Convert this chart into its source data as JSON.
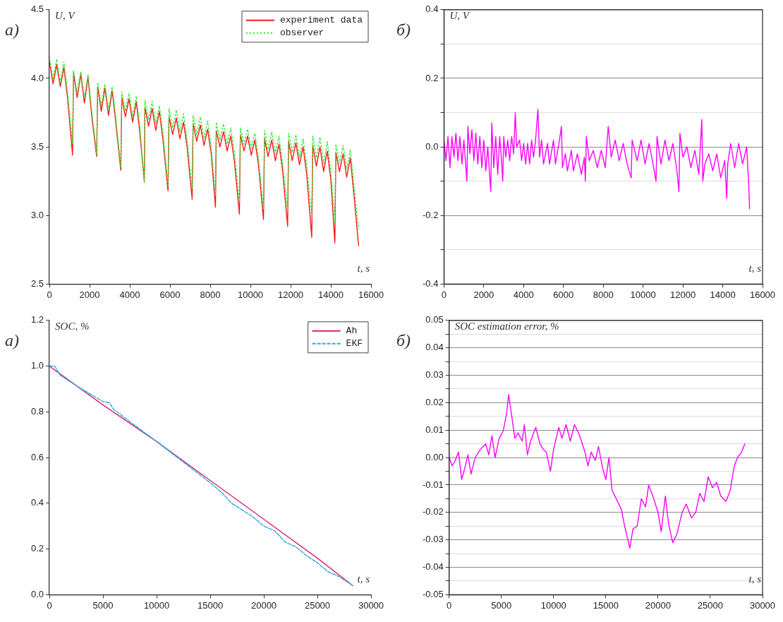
{
  "chart_data": [
    {
      "type": "line",
      "xlabel": "t, s",
      "ylabel": "U, V",
      "annotations": [
        "а)"
      ],
      "legend": "top right",
      "marker": "none",
      "xlim": [
        0,
        16000
      ],
      "xticks": [
        0,
        2000,
        4000,
        6000,
        8000,
        10000,
        12000,
        14000,
        16000
      ],
      "ylim": [
        2.5,
        4.5
      ],
      "yticks": [
        2.5,
        {
          "value": 3,
          "label": "3.0"
        },
        3.5,
        {
          "value": 4,
          "label": "4.0"
        },
        4.5
      ],
      "x": [
        0,
        180,
        360,
        540,
        720,
        900,
        1150,
        1200,
        1380,
        1560,
        1740,
        1920,
        2100,
        2350,
        2400,
        2580,
        2760,
        2940,
        3120,
        3300,
        3550,
        3600,
        3780,
        3960,
        4140,
        4320,
        4500,
        4720,
        4750,
        4930,
        5110,
        5290,
        5470,
        5650,
        5900,
        5950,
        6130,
        6310,
        6490,
        6670,
        6850,
        7100,
        7150,
        7330,
        7510,
        7690,
        7870,
        8050,
        8260,
        8300,
        8480,
        8660,
        8840,
        9020,
        9200,
        9450,
        9500,
        9680,
        9860,
        10040,
        10220,
        10400,
        10650,
        10700,
        10880,
        11060,
        11240,
        11420,
        11600,
        11850,
        11900,
        12080,
        12260,
        12440,
        12620,
        12800,
        13050,
        13100,
        13280,
        13460,
        13640,
        13820,
        14000,
        14200,
        14250,
        14430,
        14610,
        14790,
        14970,
        15150,
        15380
      ],
      "series": [
        {
          "name": "experiment data",
          "color": "#ff1a1a",
          "line_style": "solid",
          "values": [
            4.12,
            3.96,
            4.1,
            3.94,
            4.08,
            3.86,
            3.44,
            4.04,
            3.86,
            4.03,
            3.82,
            4.01,
            3.73,
            3.43,
            3.94,
            3.76,
            3.93,
            3.73,
            3.91,
            3.68,
            3.33,
            3.86,
            3.72,
            3.85,
            3.68,
            3.83,
            3.6,
            3.25,
            3.79,
            3.65,
            3.78,
            3.62,
            3.76,
            3.55,
            3.18,
            3.72,
            3.59,
            3.71,
            3.56,
            3.68,
            3.5,
            3.12,
            3.67,
            3.54,
            3.66,
            3.51,
            3.63,
            3.45,
            3.06,
            3.62,
            3.5,
            3.61,
            3.47,
            3.58,
            3.4,
            3.01,
            3.59,
            3.47,
            3.58,
            3.44,
            3.55,
            3.37,
            2.97,
            3.56,
            3.43,
            3.55,
            3.4,
            3.52,
            3.33,
            2.92,
            3.54,
            3.4,
            3.53,
            3.37,
            3.5,
            3.3,
            2.84,
            3.51,
            3.36,
            3.5,
            3.32,
            3.47,
            3.26,
            2.8,
            3.46,
            3.32,
            3.45,
            3.28,
            3.42,
            3.15,
            2.78
          ]
        },
        {
          "name": "observer",
          "color": "#33ee33",
          "line_style": "dotted",
          "values": [
            4.16,
            3.99,
            4.14,
            3.97,
            4.12,
            3.9,
            3.52,
            4.06,
            3.89,
            4.05,
            3.86,
            4.03,
            3.77,
            3.45,
            3.97,
            3.8,
            3.96,
            3.77,
            3.94,
            3.72,
            3.35,
            3.9,
            3.76,
            3.89,
            3.72,
            3.87,
            3.65,
            3.24,
            3.84,
            3.7,
            3.83,
            3.67,
            3.8,
            3.6,
            3.22,
            3.78,
            3.64,
            3.77,
            3.61,
            3.74,
            3.55,
            3.2,
            3.73,
            3.59,
            3.72,
            3.56,
            3.69,
            3.5,
            3.15,
            3.68,
            3.55,
            3.67,
            3.52,
            3.64,
            3.46,
            3.1,
            3.64,
            3.52,
            3.63,
            3.49,
            3.6,
            3.42,
            3.05,
            3.62,
            3.48,
            3.61,
            3.45,
            3.58,
            3.38,
            3.03,
            3.6,
            3.46,
            3.59,
            3.42,
            3.56,
            3.36,
            3.0,
            3.58,
            3.42,
            3.57,
            3.38,
            3.54,
            3.32,
            2.95,
            3.52,
            3.38,
            3.51,
            3.34,
            3.48,
            3.22,
            2.9
          ]
        }
      ]
    },
    {
      "type": "line",
      "xlabel": "t, s",
      "ylabel": "U, V",
      "annotations": [
        "б)"
      ],
      "marker": "none",
      "grid": "y",
      "xlim": [
        0,
        16000
      ],
      "xticks": [
        0,
        2000,
        4000,
        6000,
        8000,
        10000,
        12000,
        14000,
        16000
      ],
      "ylim": [
        -0.4,
        0.4
      ],
      "yticks": [
        -0.4,
        {
          "value": -0.3,
          "label": null
        },
        -0.2,
        {
          "value": -0.1,
          "label": null
        },
        {
          "value": 0,
          "label": "0.0"
        },
        {
          "value": 0.1,
          "label": null
        },
        0.2,
        {
          "value": 0.3,
          "label": null
        },
        0.4
      ],
      "x": [
        0,
        100,
        200,
        300,
        400,
        500,
        600,
        700,
        800,
        900,
        1000,
        1100,
        1150,
        1200,
        1300,
        1400,
        1500,
        1600,
        1700,
        1800,
        1900,
        2000,
        2100,
        2200,
        2300,
        2350,
        2400,
        2500,
        2600,
        2700,
        2800,
        2900,
        2950,
        3000,
        3100,
        3200,
        3300,
        3400,
        3500,
        3580,
        3650,
        3800,
        3900,
        4000,
        4100,
        4200,
        4300,
        4400,
        4500,
        4600,
        4720,
        4800,
        4900,
        5000,
        5200,
        5300,
        5500,
        5600,
        5800,
        5900,
        5950,
        6100,
        6200,
        6400,
        6500,
        6700,
        6900,
        7050,
        7100,
        7150,
        7300,
        7500,
        7700,
        7900,
        8100,
        8250,
        8400,
        8600,
        8800,
        9000,
        9200,
        9400,
        9450,
        9700,
        9900,
        10100,
        10300,
        10500,
        10650,
        10700,
        10900,
        11100,
        11300,
        11500,
        11700,
        11800,
        11850,
        12000,
        12200,
        12400,
        12600,
        12800,
        12950,
        13000,
        13100,
        13300,
        13500,
        13700,
        13900,
        14100,
        14200,
        14250,
        14400,
        14600,
        14800,
        15000,
        15200,
        15300,
        15350
      ],
      "series": [
        {
          "color": "#ff00ff",
          "values": [
            0.02,
            -0.04,
            0.03,
            -0.06,
            0.03,
            -0.03,
            0.04,
            -0.04,
            0.03,
            -0.05,
            0.02,
            -0.06,
            -0.1,
            0.06,
            -0.02,
            0.05,
            -0.04,
            0.04,
            -0.05,
            0.03,
            -0.06,
            0.02,
            -0.07,
            0.0,
            -0.09,
            -0.13,
            0.07,
            -0.06,
            0.03,
            -0.08,
            0.03,
            -0.05,
            -0.1,
            0.03,
            -0.03,
            0.02,
            -0.04,
            0.03,
            -0.02,
            0.1,
            0.0,
            0.02,
            -0.04,
            0.01,
            -0.05,
            0.01,
            -0.05,
            0.02,
            -0.03,
            0.02,
            0.11,
            -0.03,
            0.02,
            -0.05,
            0.01,
            -0.05,
            0.02,
            -0.05,
            0.02,
            0.06,
            -0.06,
            -0.02,
            -0.07,
            -0.01,
            -0.07,
            -0.02,
            -0.08,
            -0.03,
            -0.1,
            0.03,
            -0.04,
            -0.01,
            -0.06,
            -0.01,
            -0.06,
            0.06,
            -0.03,
            0.02,
            -0.04,
            0.01,
            -0.05,
            -0.09,
            0.02,
            -0.04,
            0.02,
            -0.05,
            0.01,
            -0.05,
            -0.1,
            0.03,
            -0.05,
            0.02,
            -0.04,
            0.01,
            -0.07,
            -0.13,
            0.04,
            -0.03,
            0.0,
            -0.06,
            -0.01,
            -0.08,
            0.08,
            -0.1,
            -0.05,
            -0.02,
            -0.07,
            -0.02,
            -0.09,
            -0.04,
            -0.15,
            -0.05,
            0.01,
            -0.06,
            0.01,
            -0.05,
            0.0,
            -0.1,
            -0.18
          ]
        }
      ]
    },
    {
      "type": "line",
      "xlabel": "t, s",
      "ylabel": "SOC, %",
      "annotations": [
        "а)"
      ],
      "legend": "top right",
      "marker": "none",
      "xlim": [
        0,
        30000
      ],
      "xticks": [
        0,
        5000,
        10000,
        15000,
        20000,
        25000,
        30000
      ],
      "ylim": [
        0,
        1.2
      ],
      "yticks": [
        {
          "value": 0,
          "label": "0.0"
        },
        0.2,
        0.4,
        0.6,
        0.8,
        {
          "value": 1,
          "label": "1.0"
        },
        1.2
      ],
      "series": [
        {
          "name": "Ah",
          "color": "#d6246e",
          "line_style": "solid",
          "x": [
            0,
            5000,
            10000,
            15000,
            20000,
            25000,
            28300
          ],
          "values": [
            1.0,
            0.83,
            0.67,
            0.5,
            0.33,
            0.16,
            0.04
          ]
        },
        {
          "name": "EKF",
          "color": "#29a8e0",
          "line_style": "dashed",
          "x": [
            0,
            500,
            1000,
            3000,
            5000,
            5600,
            6000,
            10000,
            15000,
            16000,
            17000,
            18000,
            19000,
            20000,
            21000,
            22000,
            23000,
            24000,
            25000,
            26000,
            27000,
            28300
          ],
          "values": [
            1.0,
            1.0,
            0.96,
            0.9,
            0.845,
            0.84,
            0.81,
            0.67,
            0.49,
            0.45,
            0.4,
            0.37,
            0.34,
            0.3,
            0.28,
            0.23,
            0.21,
            0.17,
            0.14,
            0.1,
            0.08,
            0.04
          ]
        }
      ]
    },
    {
      "type": "line",
      "xlabel": "t, s",
      "ylabel": "SOC estimation error, %",
      "annotations": [
        "б)"
      ],
      "marker": "none",
      "grid": "y",
      "xlim": [
        0,
        30000
      ],
      "xticks": [
        0,
        5000,
        10000,
        15000,
        20000,
        25000,
        30000
      ],
      "ylim": [
        -0.05,
        0.05
      ],
      "yticks": [
        -0.05,
        {
          "value": -0.045,
          "label": null
        },
        -0.04,
        {
          "value": -0.035,
          "label": null
        },
        -0.03,
        {
          "value": -0.025,
          "label": null
        },
        -0.02,
        {
          "value": -0.015,
          "label": null
        },
        -0.01,
        {
          "value": -0.005,
          "label": null
        },
        {
          "value": 0,
          "label": "0.00"
        },
        {
          "value": 0.005,
          "label": null
        },
        0.01,
        {
          "value": 0.015,
          "label": null
        },
        0.02,
        {
          "value": 0.025,
          "label": null
        },
        0.03,
        {
          "value": 0.035,
          "label": null
        },
        0.04,
        {
          "value": 0.045,
          "label": null
        },
        0.05
      ],
      "x": [
        0,
        300,
        600,
        900,
        1200,
        1500,
        1800,
        2100,
        2500,
        3000,
        3500,
        3800,
        4100,
        4400,
        4800,
        5200,
        5500,
        5700,
        6000,
        6300,
        6600,
        7000,
        7200,
        7500,
        7800,
        8300,
        8700,
        9000,
        9300,
        9700,
        10000,
        10500,
        10800,
        11200,
        11600,
        12000,
        12500,
        13000,
        13300,
        13600,
        14000,
        14300,
        14700,
        15000,
        15300,
        15600,
        16000,
        16500,
        16800,
        17300,
        17600,
        18000,
        18400,
        18800,
        19100,
        19500,
        20000,
        20300,
        20700,
        21000,
        21400,
        21800,
        22300,
        22700,
        23200,
        23600,
        24000,
        24400,
        24800,
        25200,
        25600,
        26000,
        26500,
        26900,
        27300,
        27600,
        28000,
        28300
      ],
      "series": [
        {
          "color": "#ff00ff",
          "values": [
            0.0,
            -0.003,
            -0.001,
            0.002,
            -0.008,
            -0.004,
            0.001,
            -0.006,
            0.0,
            0.003,
            0.005,
            0.001,
            0.008,
            0.0,
            0.007,
            0.01,
            0.016,
            0.023,
            0.015,
            0.007,
            0.009,
            0.006,
            0.012,
            0.001,
            0.006,
            0.011,
            0.005,
            0.003,
            0.002,
            -0.005,
            0.003,
            0.011,
            0.007,
            0.012,
            0.006,
            0.012,
            0.008,
            0.002,
            -0.003,
            0.002,
            -0.001,
            0.004,
            -0.004,
            -0.008,
            0.0,
            -0.012,
            -0.015,
            -0.019,
            -0.025,
            -0.033,
            -0.026,
            -0.025,
            -0.015,
            -0.018,
            -0.01,
            -0.014,
            -0.02,
            -0.027,
            -0.014,
            -0.024,
            -0.031,
            -0.028,
            -0.02,
            -0.017,
            -0.022,
            -0.02,
            -0.013,
            -0.016,
            -0.007,
            -0.011,
            -0.009,
            -0.014,
            -0.016,
            -0.012,
            -0.003,
            0.0,
            0.002,
            0.005
          ]
        }
      ]
    }
  ]
}
